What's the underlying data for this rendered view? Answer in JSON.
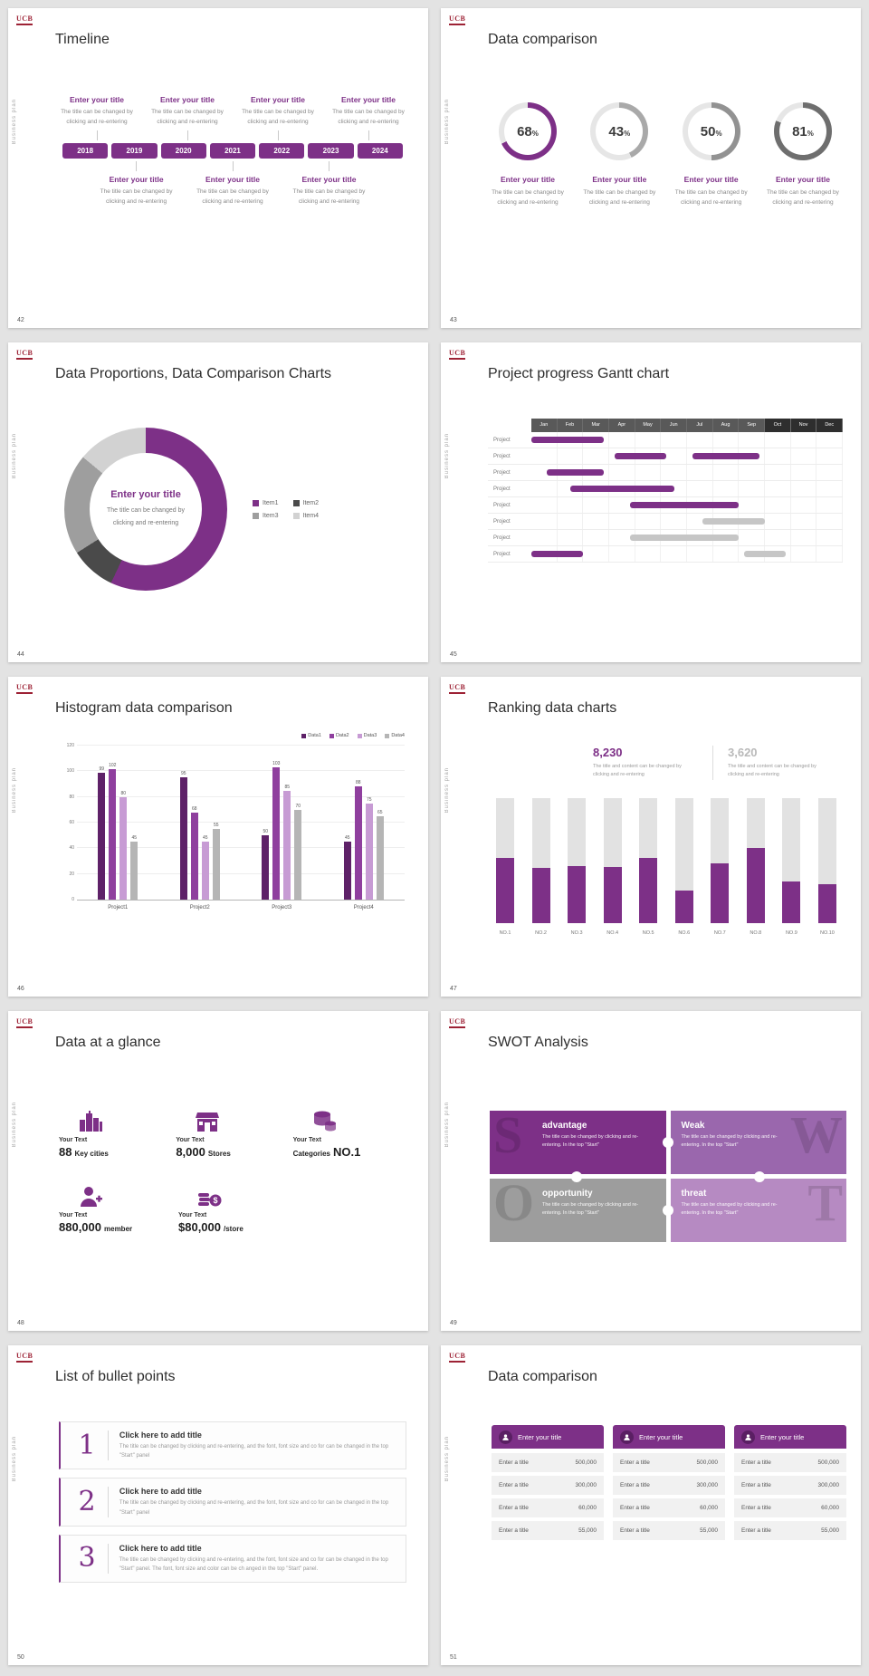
{
  "common": {
    "logo": "UCB",
    "side_text": "Business plan"
  },
  "theme": {
    "purple": "#7d3087",
    "gray": "#9e9e9e"
  },
  "slides": [
    {
      "number": "42",
      "title": "Timeline",
      "years": [
        "2018",
        "2019",
        "2020",
        "2021",
        "2022",
        "2023",
        "2024"
      ],
      "top_items": [
        {
          "title": "Enter your title",
          "text": "The title can be changed by clicking and re-entering"
        },
        {
          "title": "Enter your title",
          "text": "The title can be changed by clicking and re-entering"
        },
        {
          "title": "Enter your title",
          "text": "The title can be changed by clicking and re-entering"
        },
        {
          "title": "Enter your title",
          "text": "The title can be changed by clicking and re-entering"
        }
      ],
      "bottom_items": [
        {
          "title": "Enter your title",
          "text": "The title can be changed by clicking and re-entering"
        },
        {
          "title": "Enter your title",
          "text": "The title can be changed by clicking and re-entering"
        },
        {
          "title": "Enter your title",
          "text": "The title can be changed by clicking and re-entering"
        }
      ]
    },
    {
      "number": "43",
      "title": "Data comparison",
      "percent_sign": "%",
      "chart_data": {
        "type": "donut-set",
        "items": [
          {
            "value": 68,
            "color": "#7d3087"
          },
          {
            "value": 43,
            "color": "#a9a9a9"
          },
          {
            "value": 50,
            "color": "#929292"
          },
          {
            "value": 81,
            "color": "#6e6e6e"
          }
        ]
      },
      "captions": [
        {
          "title": "Enter your title",
          "text": "The title can be changed by clicking and re-entering"
        },
        {
          "title": "Enter your title",
          "text": "The title can be changed by clicking and re-entering"
        },
        {
          "title": "Enter your title",
          "text": "The title can be changed by clicking and re-entering"
        },
        {
          "title": "Enter your title",
          "text": "The title can be changed by clicking and re-entering"
        }
      ]
    },
    {
      "number": "44",
      "title": "Data Proportions, Data Comparison Charts",
      "center_title": "Enter your title",
      "center_text": "The title can be changed by clicking and re-entering",
      "chart_data": {
        "type": "pie",
        "segments": [
          {
            "name": "Item1",
            "value": 57,
            "color": "#7d3087"
          },
          {
            "name": "Item2",
            "value": 9,
            "color": "#4a4a4a"
          },
          {
            "name": "Item3",
            "value": 20,
            "color": "#9e9e9e"
          },
          {
            "name": "Item4",
            "value": 14,
            "color": "#d2d2d2"
          }
        ]
      }
    },
    {
      "number": "45",
      "title": "Project progress Gantt chart",
      "chart_data": {
        "type": "gantt",
        "months": [
          "Jan",
          "Feb",
          "Mar",
          "Apr",
          "May",
          "Jun",
          "Jul",
          "Aug",
          "Sep",
          "Oct",
          "Nov",
          "Dec"
        ],
        "row_label": "Project",
        "rows": 8,
        "bars": [
          {
            "row": 0,
            "start": 0,
            "len": 2.8,
            "color": "purple"
          },
          {
            "row": 1,
            "start": 3.2,
            "len": 2,
            "color": "purple"
          },
          {
            "row": 1,
            "start": 6.2,
            "len": 2.6,
            "color": "purple"
          },
          {
            "row": 2,
            "start": 0.6,
            "len": 2.2,
            "color": "purple"
          },
          {
            "row": 3,
            "start": 1.5,
            "len": 4,
            "color": "purple"
          },
          {
            "row": 4,
            "start": 3.8,
            "len": 4.2,
            "color": "purple"
          },
          {
            "row": 5,
            "start": 6.6,
            "len": 2.4,
            "color": "gray"
          },
          {
            "row": 6,
            "start": 3.8,
            "len": 4.2,
            "color": "gray"
          },
          {
            "row": 7,
            "start": 0,
            "len": 2,
            "color": "purple"
          },
          {
            "row": 7,
            "start": 8.2,
            "len": 1.6,
            "color": "gray"
          }
        ]
      }
    },
    {
      "number": "46",
      "title": "Histogram data comparison",
      "chart_data": {
        "type": "bar",
        "categories": [
          "Project1",
          "Project2",
          "Project3",
          "Project4"
        ],
        "series": [
          {
            "name": "Data1",
            "color": "#5e2168",
            "values": [
              99,
              95,
              50,
              45
            ]
          },
          {
            "name": "Data2",
            "color": "#8f3f9e",
            "values": [
              102,
              68,
              103,
              88
            ]
          },
          {
            "name": "Data3",
            "color": "#c79bd4",
            "values": [
              80,
              45,
              85,
              75
            ]
          },
          {
            "name": "Data4",
            "color": "#b5b5b5",
            "values": [
              45,
              55,
              70,
              65
            ]
          }
        ],
        "ylim": [
          0,
          120
        ],
        "yticks": [
          0,
          20,
          40,
          60,
          80,
          100,
          120
        ]
      }
    },
    {
      "number": "47",
      "title": "Ranking data charts",
      "stats": [
        {
          "value": "8,230",
          "text": "The title and content can be changed by clicking and re-entering",
          "color": "#7d3087"
        },
        {
          "value": "3,620",
          "text": "The title and content can be changed by clicking and re-entering",
          "color": "#b9b9b9"
        }
      ],
      "chart_data": {
        "type": "ranking-bar",
        "max": 100,
        "categories": [
          "NO.1",
          "NO.2",
          "NO.3",
          "NO.4",
          "NO.5",
          "NO.6",
          "NO.7",
          "NO.8",
          "NO.9",
          "NO.10"
        ],
        "values": [
          52,
          44,
          46,
          45,
          52,
          26,
          48,
          60,
          33,
          31
        ],
        "track_color": "#e2e2e2",
        "bar_color": "#7d3087"
      }
    },
    {
      "number": "48",
      "title": "Data at a glance",
      "stats": [
        {
          "icon": "city-icon",
          "label": "Your Text",
          "value": "88",
          "unit": "Key cities"
        },
        {
          "icon": "store-icon",
          "label": "Your Text",
          "value": "8,000",
          "unit": "Stores"
        },
        {
          "icon": "category-icon",
          "label": "Your Text",
          "value": "NO.1",
          "unit": "Categories",
          "unit_first": true
        },
        {
          "icon": "member-icon",
          "label": "Your Text",
          "value": "880,000",
          "unit": "member"
        },
        {
          "icon": "money-icon",
          "label": "Your Text",
          "value": "$80,000",
          "unit": "/store"
        }
      ]
    },
    {
      "number": "49",
      "title": "SWOT Analysis",
      "pieces": [
        {
          "letter": "S",
          "title": "advantage",
          "text": "The title can be changed by clicking and re-entering. In the top \"Start\"",
          "color": "#7d3087"
        },
        {
          "letter": "W",
          "title": "Weak",
          "text": "The title can be changed by clicking and re-entering. In the top \"Start\"",
          "color": "#9a67ad"
        },
        {
          "letter": "O",
          "title": "opportunity",
          "text": "The title can be changed by clicking and re-entering. In the top \"Start\"",
          "color": "#9d9d9d"
        },
        {
          "letter": "T",
          "title": "threat",
          "text": "The title can be changed by clicking and re-entering. In the top \"Start\"",
          "color": "#b68ac2"
        }
      ]
    },
    {
      "number": "50",
      "title": "List of bullet points",
      "items": [
        {
          "num": "1",
          "title": "Click here to add title",
          "text": "The title can be changed by clicking and re-entering, and the font, font size and co for can be changed in the top \"Start\" panel"
        },
        {
          "num": "2",
          "title": "Click here to add title",
          "text": "The title can be changed by clicking and re-entering, and the font, font size and co for can be changed in the top \"Start\" panel"
        },
        {
          "num": "3",
          "title": "Click here to add title",
          "text": "The title can be changed by clicking and re-entering, and the font, font size and co for can be changed in the top \"Start\" panel. The font, font size and color can be ch anged in the top \"Start\" panel."
        }
      ]
    },
    {
      "number": "51",
      "title": "Data comparison",
      "tables": [
        {
          "icon": "user-icon",
          "header": "Enter your title",
          "rows": [
            [
              "Enter a title",
              "500,000"
            ],
            [
              "Enter a title",
              "300,000"
            ],
            [
              "Enter a title",
              "60,000"
            ],
            [
              "Enter a title",
              "55,000"
            ]
          ]
        },
        {
          "icon": "user-icon",
          "header": "Enter your title",
          "rows": [
            [
              "Enter a title",
              "500,000"
            ],
            [
              "Enter a title",
              "300,000"
            ],
            [
              "Enter a title",
              "60,000"
            ],
            [
              "Enter a title",
              "55,000"
            ]
          ]
        },
        {
          "icon": "user-icon",
          "header": "Enter your title",
          "rows": [
            [
              "Enter a title",
              "500,000"
            ],
            [
              "Enter a title",
              "300,000"
            ],
            [
              "Enter a title",
              "60,000"
            ],
            [
              "Enter a title",
              "55,000"
            ]
          ]
        }
      ]
    }
  ]
}
